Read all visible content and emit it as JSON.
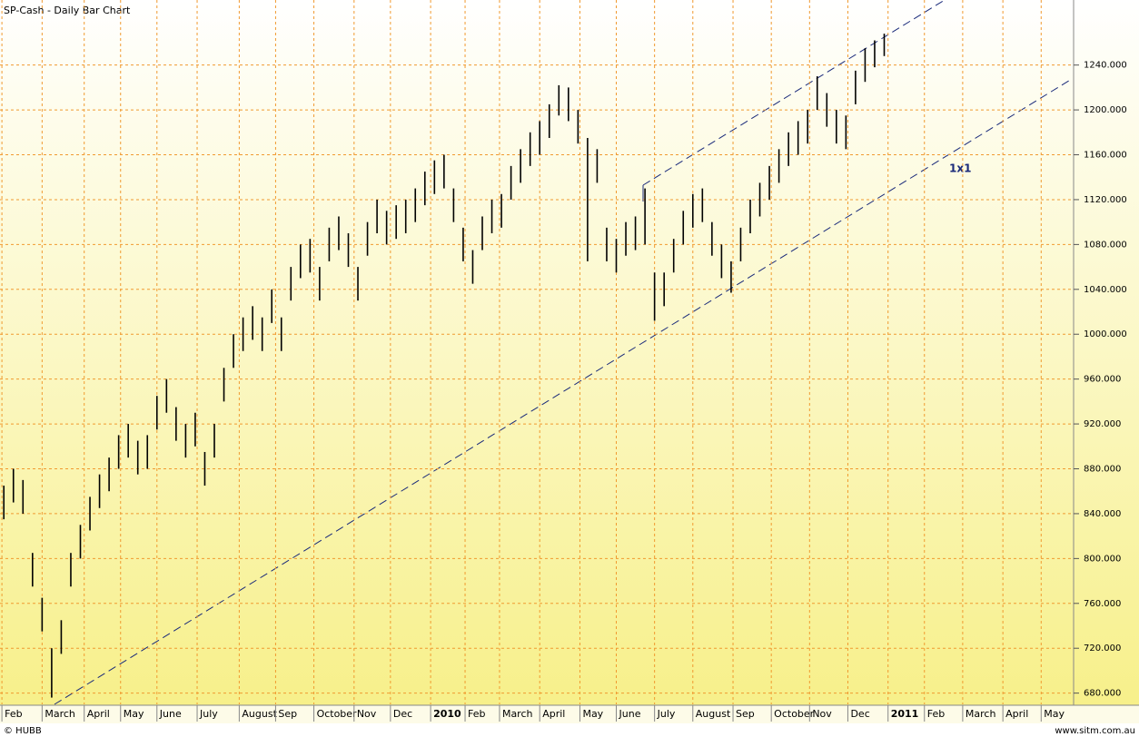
{
  "chart_data": {
    "type": "ohlc",
    "title": "SP-Cash - Daily Bar Chart",
    "annotation": "1x1",
    "footer_left": "© HUBB",
    "footer_right": "www.sitm.com.au",
    "color": "#000000",
    "grid": true,
    "xlim": [
      0,
      560
    ],
    "ylim": [
      670,
      1298
    ],
    "xticks": [
      {
        "value": 1,
        "label": "Feb"
      },
      {
        "value": 22,
        "label": "March"
      },
      {
        "value": 44,
        "label": "April"
      },
      {
        "value": 63,
        "label": "May"
      },
      {
        "value": 82,
        "label": "June"
      },
      {
        "value": 103,
        "label": "July"
      },
      {
        "value": 125,
        "label": "August"
      },
      {
        "value": 144,
        "label": "Sep"
      },
      {
        "value": 164,
        "label": "October"
      },
      {
        "value": 185,
        "label": "Nov"
      },
      {
        "value": 204,
        "label": "Dec"
      },
      {
        "value": 225,
        "label": "2010"
      },
      {
        "value": 243,
        "label": "Feb"
      },
      {
        "value": 261,
        "label": "March"
      },
      {
        "value": 282,
        "label": "April"
      },
      {
        "value": 303,
        "label": "May"
      },
      {
        "value": 322,
        "label": "June"
      },
      {
        "value": 342,
        "label": "July"
      },
      {
        "value": 362,
        "label": "August"
      },
      {
        "value": 383,
        "label": "Sep"
      },
      {
        "value": 403,
        "label": "October"
      },
      {
        "value": 423,
        "label": "Nov"
      },
      {
        "value": 443,
        "label": "Dec"
      },
      {
        "value": 464,
        "label": "2011"
      },
      {
        "value": 483,
        "label": "Feb"
      },
      {
        "value": 503,
        "label": "March"
      },
      {
        "value": 524,
        "label": "April"
      },
      {
        "value": 544,
        "label": "May"
      }
    ],
    "yticks": [
      {
        "value": 680,
        "label": "680.000"
      },
      {
        "value": 720,
        "label": "720.000"
      },
      {
        "value": 760,
        "label": "760.000"
      },
      {
        "value": 800,
        "label": "800.000"
      },
      {
        "value": 840,
        "label": "840.000"
      },
      {
        "value": 880,
        "label": "880.000"
      },
      {
        "value": 920,
        "label": "920.000"
      },
      {
        "value": 960,
        "label": "960.000"
      },
      {
        "value": 1000,
        "label": "1000.000"
      },
      {
        "value": 1040,
        "label": "1040.000"
      },
      {
        "value": 1080,
        "label": "1080.000"
      },
      {
        "value": 1120,
        "label": "1120.000"
      },
      {
        "value": 1160,
        "label": "1160.000"
      },
      {
        "value": 1200,
        "label": "1200.000"
      },
      {
        "value": 1240,
        "label": "1240.000"
      }
    ],
    "x": [
      2,
      7,
      12,
      17,
      22,
      27,
      32,
      37,
      42,
      47,
      52,
      57,
      62,
      67,
      72,
      77,
      82,
      87,
      92,
      97,
      102,
      107,
      112,
      117,
      122,
      127,
      132,
      137,
      142,
      147,
      152,
      157,
      162,
      167,
      172,
      177,
      182,
      187,
      192,
      197,
      202,
      207,
      212,
      217,
      222,
      227,
      232,
      237,
      242,
      247,
      252,
      257,
      262,
      267,
      272,
      277,
      282,
      287,
      292,
      297,
      302,
      307,
      312,
      317,
      322,
      327,
      332,
      337,
      342,
      347,
      352,
      357,
      362,
      367,
      372,
      377,
      382,
      387,
      392,
      397,
      402,
      407,
      412,
      417,
      422,
      427,
      432,
      437,
      442,
      447,
      452,
      457,
      462
    ],
    "high": [
      865,
      880,
      870,
      805,
      765,
      720,
      745,
      805,
      830,
      855,
      875,
      890,
      910,
      920,
      905,
      910,
      945,
      960,
      935,
      920,
      930,
      895,
      920,
      970,
      1000,
      1015,
      1025,
      1015,
      1040,
      1015,
      1060,
      1080,
      1085,
      1060,
      1095,
      1105,
      1090,
      1060,
      1100,
      1120,
      1110,
      1115,
      1120,
      1130,
      1145,
      1155,
      1160,
      1130,
      1095,
      1075,
      1105,
      1120,
      1125,
      1150,
      1165,
      1180,
      1190,
      1205,
      1222,
      1220,
      1200,
      1175,
      1165,
      1095,
      1085,
      1100,
      1105,
      1130,
      1055,
      1055,
      1085,
      1110,
      1125,
      1130,
      1100,
      1080,
      1065,
      1095,
      1120,
      1135,
      1150,
      1165,
      1180,
      1190,
      1200,
      1230,
      1215,
      1200,
      1195,
      1235,
      1255,
      1262,
      1268
    ],
    "low": [
      835,
      850,
      840,
      775,
      735,
      676,
      715,
      775,
      800,
      825,
      845,
      860,
      880,
      890,
      875,
      880,
      915,
      930,
      905,
      890,
      900,
      865,
      890,
      940,
      970,
      985,
      995,
      985,
      1010,
      985,
      1030,
      1050,
      1055,
      1030,
      1065,
      1075,
      1060,
      1030,
      1070,
      1090,
      1080,
      1085,
      1090,
      1100,
      1115,
      1125,
      1130,
      1100,
      1065,
      1045,
      1075,
      1090,
      1095,
      1120,
      1135,
      1150,
      1160,
      1175,
      1195,
      1190,
      1170,
      1065,
      1135,
      1065,
      1055,
      1070,
      1075,
      1080,
      1012,
      1025,
      1055,
      1080,
      1095,
      1100,
      1070,
      1050,
      1037,
      1065,
      1090,
      1105,
      1120,
      1135,
      1150,
      1160,
      1170,
      1200,
      1185,
      1170,
      1165,
      1205,
      1225,
      1238,
      1248
    ]
  }
}
